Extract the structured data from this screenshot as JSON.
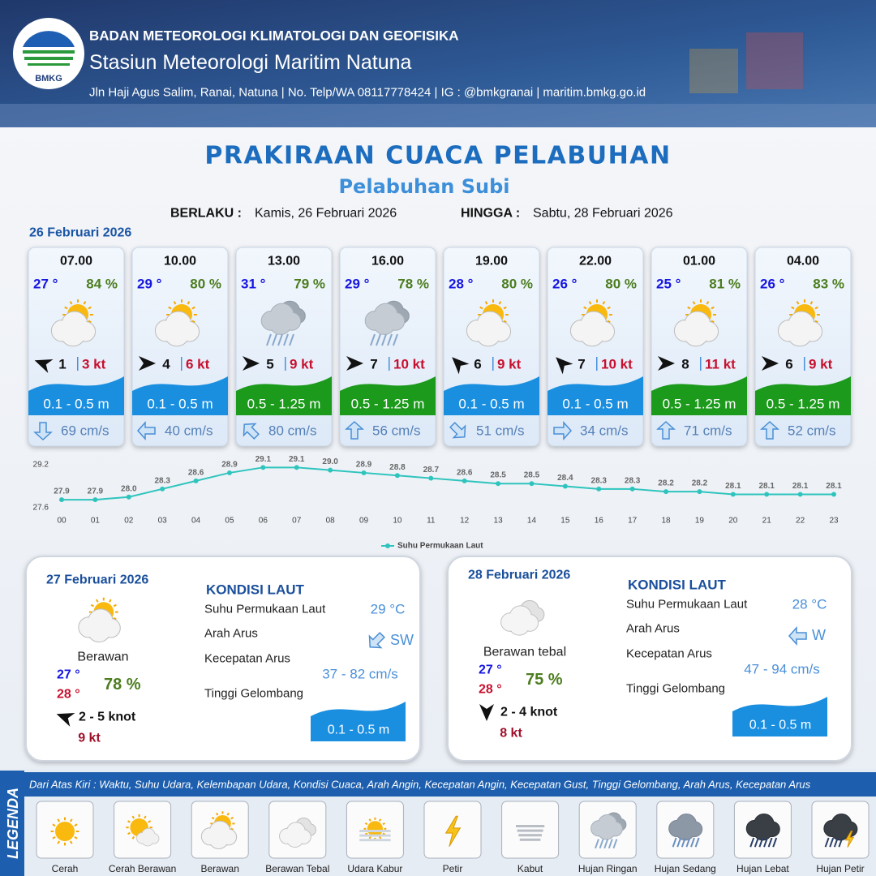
{
  "header": {
    "logo_text": "BMKG",
    "org": "BADAN METEOROLOGI KLIMATOLOGI DAN GEOFISIKA",
    "station": "Stasiun Meteorologi Maritim Natuna",
    "address": "Jln Haji Agus Salim, Ranai, Natuna  | No. Telp/WA 08117778424 | IG : @bmkgranai | maritim.bmkg.go.id"
  },
  "title": "PRAKIRAAN CUACA PELABUHAN",
  "subtitle": "Pelabuhan Subi",
  "validity": {
    "from_label": "BERLAKU :",
    "from": "Kamis, 26 Februari 2026",
    "to_label": "HINGGA :",
    "to": "Sabtu, 28 Februari 2026"
  },
  "day1_date": "26 Februari 2026",
  "cards": [
    {
      "time": "07.00",
      "temp": "27 °",
      "humidity": "84 %",
      "icon": "Berawan",
      "wind_rotate": 200,
      "wind": 1,
      "gust": "3 kt",
      "wave": "0.1 - 0.5 m",
      "wave_color": "#1a8fe0",
      "current_rotate": 90,
      "current": "69 cm/s"
    },
    {
      "time": "10.00",
      "temp": "29 °",
      "humidity": "80 %",
      "icon": "Berawan",
      "wind_rotate": 0,
      "wind": 4,
      "gust": "6 kt",
      "wave": "0.1 - 0.5 m",
      "wave_color": "#1a8fe0",
      "current_rotate": 180,
      "current": "40 cm/s"
    },
    {
      "time": "13.00",
      "temp": "31 °",
      "humidity": "79 %",
      "icon": "Hujan Ringan",
      "wind_rotate": 0,
      "wind": 5,
      "gust": "9 kt",
      "wave": "0.5 - 1.25 m",
      "wave_color": "#1b9a1b",
      "current_rotate": 225,
      "current": "80 cm/s"
    },
    {
      "time": "16.00",
      "temp": "29 °",
      "humidity": "78 %",
      "icon": "Hujan Ringan",
      "wind_rotate": 0,
      "wind": 7,
      "gust": "10 kt",
      "wave": "0.5 - 1.25 m",
      "wave_color": "#1b9a1b",
      "current_rotate": 270,
      "current": "56 cm/s"
    },
    {
      "time": "19.00",
      "temp": "28 °",
      "humidity": "80 %",
      "icon": "Berawan",
      "wind_rotate": 225,
      "wind": 6,
      "gust": "9 kt",
      "wave": "0.1 - 0.5 m",
      "wave_color": "#1a8fe0",
      "current_rotate": 45,
      "current": "51 cm/s"
    },
    {
      "time": "22.00",
      "temp": "26 °",
      "humidity": "80 %",
      "icon": "Berawan",
      "wind_rotate": 225,
      "wind": 7,
      "gust": "10 kt",
      "wave": "0.1 - 0.5 m",
      "wave_color": "#1a8fe0",
      "current_rotate": 0,
      "current": "34 cm/s"
    },
    {
      "time": "01.00",
      "temp": "25 °",
      "humidity": "81 %",
      "icon": "Berawan",
      "wind_rotate": 0,
      "wind": 8,
      "gust": "11 kt",
      "wave": "0.5 - 1.25 m",
      "wave_color": "#1b9a1b",
      "current_rotate": 270,
      "current": "71 cm/s"
    },
    {
      "time": "04.00",
      "temp": "26 °",
      "humidity": "83 %",
      "icon": "Berawan",
      "wind_rotate": 0,
      "wind": 6,
      "gust": "9 kt",
      "wave": "0.5 - 1.25 m",
      "wave_color": "#1b9a1b",
      "current_rotate": 270,
      "current": "52 cm/s"
    }
  ],
  "chart_data": {
    "type": "line",
    "categories": [
      "00",
      "01",
      "02",
      "03",
      "04",
      "05",
      "06",
      "07",
      "08",
      "09",
      "10",
      "11",
      "12",
      "13",
      "14",
      "15",
      "16",
      "17",
      "18",
      "19",
      "20",
      "21",
      "22",
      "23"
    ],
    "series": [
      {
        "name": "Suhu Permukaan Laut",
        "color": "#2ec4bd",
        "values": [
          27.9,
          27.9,
          28.0,
          28.3,
          28.6,
          28.9,
          29.1,
          29.1,
          29.0,
          28.9,
          28.8,
          28.7,
          28.6,
          28.5,
          28.5,
          28.4,
          28.3,
          28.3,
          28.2,
          28.2,
          28.1,
          28.1,
          28.1,
          28.1
        ],
        "value_labels": [
          "27.9",
          "27.9",
          "28.0",
          "28.3",
          "28.6",
          "28.9",
          "29.1",
          "29.1",
          "29.0",
          "28.9",
          "28.8",
          "28.7",
          "28.6",
          "28.5",
          "28.5",
          "28.4",
          "28.3",
          "28.3",
          "28.2",
          "28.2",
          "28.1",
          "28.1",
          "28.1",
          "28.1"
        ]
      }
    ],
    "ylim": [
      27.6,
      29.2
    ],
    "yticks": [
      27.6,
      29.2
    ],
    "grid": false,
    "legend": "bottom"
  },
  "panels": [
    {
      "date": "27 Februari 2026",
      "icon": "Berawan",
      "condition": "Berawan",
      "temp_min": "27 °",
      "temp_max": "28 °",
      "humidity": "78 %",
      "wind_rotate": 200,
      "wind": "2  - 5 knot",
      "gust": "9 kt",
      "kondisi_label": "KONDISI LAUT",
      "sst_label": "Suhu Permukaan Laut",
      "sst": "29 °C",
      "current_dir_label": "Arah Arus",
      "current_rotate": 135,
      "current_dir": "SW",
      "current_speed_label": "Kecepatan Arus",
      "current_speed": "37 - 82 cm/s",
      "wave_label": "Tinggi Gelombang",
      "wave": "0.1 - 0.5 m",
      "wave_color": "#1a8fe0"
    },
    {
      "date": "28 Februari 2026",
      "icon": "Berawan Tebal",
      "condition": "Berawan tebal",
      "temp_min": "27 °",
      "temp_max": "28 °",
      "humidity": "75 %",
      "wind_rotate": 90,
      "wind": "2  - 4 knot",
      "gust": "8 kt",
      "kondisi_label": "KONDISI LAUT",
      "sst_label": "Suhu Permukaan Laut",
      "sst": "28 °C",
      "current_dir_label": "Arah Arus",
      "current_rotate": 180,
      "current_dir": "W",
      "current_speed_label": "Kecepatan Arus",
      "current_speed": "47 - 94 cm/s",
      "wave_label": "Tinggi Gelombang",
      "wave": "0.1 - 0.5 m",
      "wave_color": "#1a8fe0"
    }
  ],
  "legend": {
    "title": "LEGENDA",
    "description": "Dari Atas Kiri : Waktu, Suhu Udara, Kelembapan Udara, Kondisi Cuaca, Arah Angin, Kecepatan Angin, Kecepatan Gust, Tinggi Gelombang, Arah Arus, Kecepatan Arus",
    "items": [
      "Cerah",
      "Cerah Berawan",
      "Berawan",
      "Berawan Tebal",
      "Udara Kabur",
      "Petir",
      "Kabut",
      "Hujan Ringan",
      "Hujan Sedang",
      "Hujan Lebat",
      "Hujan Petir"
    ]
  }
}
